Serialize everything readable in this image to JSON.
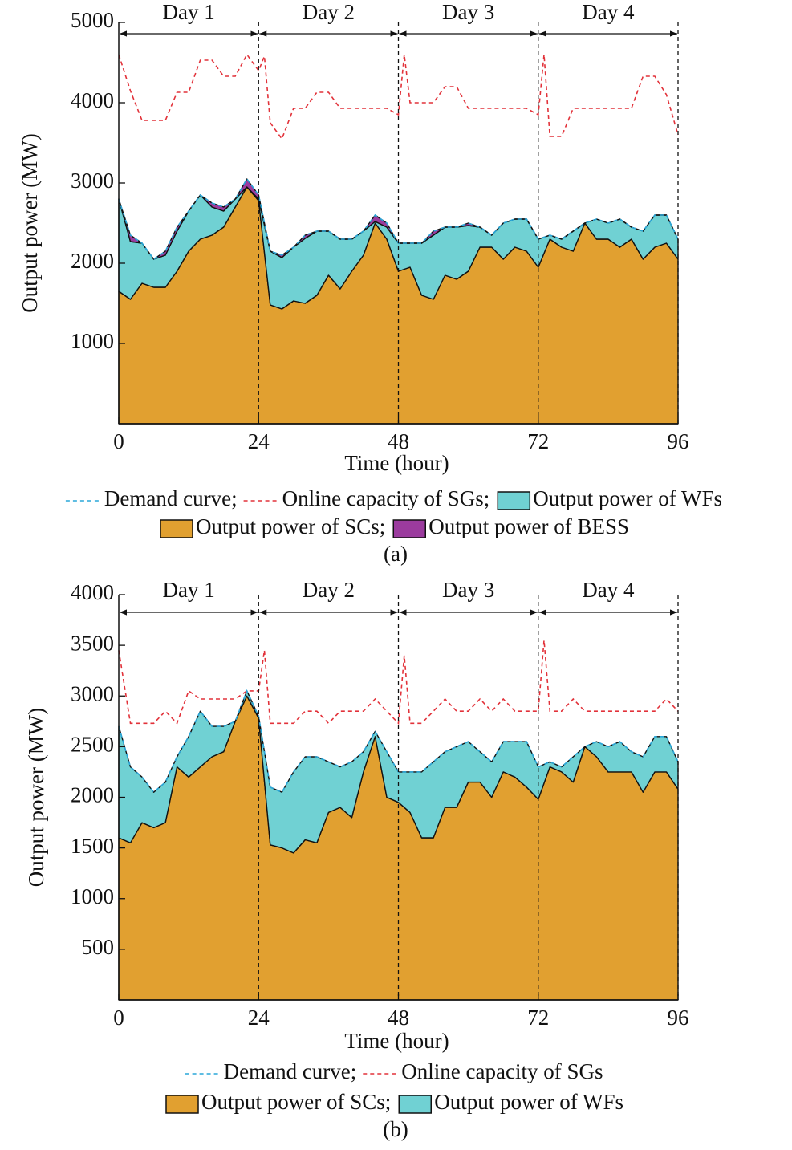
{
  "chart_data": [
    {
      "type": "stacked-area",
      "caption": "(a)",
      "xlabel": "Time (hour)",
      "ylabel": "Output power (MW)",
      "xlim": [
        0,
        96
      ],
      "xticks": [
        0,
        24,
        48,
        72,
        96
      ],
      "ylim": [
        0,
        5000
      ],
      "yticks": [
        1000,
        2000,
        3000,
        4000,
        5000
      ],
      "days": [
        "Day 1",
        "Day 2",
        "Day 3",
        "Day 4"
      ],
      "day_boundaries": [
        0,
        24,
        48,
        72,
        96
      ],
      "legend_rows": [
        [
          0,
          1,
          3
        ],
        [
          2,
          4
        ]
      ],
      "x": [
        0,
        2,
        4,
        6,
        8,
        10,
        12,
        14,
        16,
        18,
        20,
        22,
        24,
        26,
        28,
        30,
        32,
        34,
        36,
        38,
        40,
        42,
        44,
        46,
        48,
        50,
        52,
        54,
        56,
        58,
        60,
        62,
        64,
        66,
        68,
        70,
        72,
        74,
        76,
        78,
        80,
        82,
        84,
        86,
        88,
        90,
        92,
        94,
        96
      ],
      "series": [
        {
          "name": "Demand curve;",
          "kind": "line",
          "dashed": true,
          "color": "#2aa7d9",
          "values": [
            2800,
            2350,
            2250,
            2050,
            2150,
            2450,
            2650,
            2850,
            2750,
            2700,
            2800,
            3050,
            2850,
            2150,
            2100,
            2200,
            2350,
            2400,
            2400,
            2300,
            2300,
            2400,
            2600,
            2500,
            2250,
            2250,
            2250,
            2400,
            2450,
            2450,
            2500,
            2450,
            2350,
            2500,
            2550,
            2550,
            2300,
            2350,
            2300,
            2400,
            2500,
            2550,
            2500,
            2550,
            2450,
            2400,
            2600,
            2600,
            2300
          ]
        },
        {
          "name": "Online capacity of SGs;",
          "kind": "line",
          "dashed": true,
          "color": "#e2323a",
          "x": [
            0,
            2,
            4,
            6,
            8,
            10,
            12,
            14,
            16,
            18,
            20,
            22,
            24,
            25,
            26,
            28,
            30,
            32,
            34,
            36,
            38,
            40,
            42,
            44,
            46,
            48,
            49,
            50,
            52,
            54,
            56,
            58,
            60,
            62,
            64,
            66,
            68,
            70,
            72,
            73,
            74,
            76,
            78,
            80,
            82,
            84,
            86,
            88,
            90,
            92,
            94,
            96
          ],
          "values": [
            4600,
            4150,
            3780,
            3780,
            3780,
            4130,
            4130,
            4530,
            4530,
            4330,
            4330,
            4600,
            4400,
            4580,
            3750,
            3550,
            3930,
            3930,
            4130,
            4130,
            3930,
            3930,
            3930,
            3930,
            3930,
            3850,
            4600,
            4000,
            4000,
            4000,
            4200,
            4200,
            3930,
            3930,
            3930,
            3930,
            3930,
            3930,
            3850,
            4600,
            3580,
            3580,
            3930,
            3930,
            3930,
            3930,
            3930,
            3930,
            4330,
            4330,
            4100,
            3600
          ]
        },
        {
          "name": "Output power of SCs;",
          "kind": "area",
          "color": "#e1a030",
          "values": [
            1650,
            1550,
            1750,
            1700,
            1700,
            1900,
            2150,
            2300,
            2350,
            2450,
            2700,
            2950,
            2780,
            1480,
            1430,
            1530,
            1500,
            1600,
            1850,
            1680,
            1900,
            2100,
            2500,
            2300,
            1900,
            1950,
            1600,
            1550,
            1850,
            1800,
            1900,
            2200,
            2200,
            2050,
            2200,
            2150,
            1950,
            2300,
            2200,
            2150,
            2500,
            2300,
            2300,
            2200,
            2300,
            2050,
            2200,
            2250,
            2050
          ]
        },
        {
          "name": "Output power of WFs",
          "kind": "area",
          "color": "#70d1d3",
          "values": [
            1150,
            720,
            500,
            350,
            400,
            500,
            500,
            550,
            350,
            200,
            100,
            0,
            20,
            670,
            640,
            670,
            810,
            800,
            550,
            620,
            400,
            300,
            20,
            150,
            350,
            300,
            650,
            800,
            600,
            650,
            570,
            250,
            150,
            450,
            350,
            400,
            350,
            50,
            100,
            250,
            0,
            250,
            200,
            350,
            150,
            350,
            400,
            350,
            250
          ]
        },
        {
          "name": "Output power of BESS",
          "kind": "area",
          "color": "#9b3b9e",
          "values": [
            0,
            80,
            0,
            0,
            50,
            50,
            0,
            0,
            50,
            50,
            0,
            100,
            50,
            0,
            30,
            0,
            40,
            0,
            0,
            0,
            0,
            0,
            80,
            50,
            0,
            0,
            0,
            50,
            0,
            0,
            30,
            0,
            0,
            0,
            0,
            0,
            0,
            0,
            0,
            0,
            0,
            0,
            0,
            0,
            0,
            0,
            0,
            0,
            0
          ]
        }
      ]
    },
    {
      "type": "stacked-area",
      "caption": "(b)",
      "xlabel": "Time (hour)",
      "ylabel": "Output power (MW)",
      "xlim": [
        0,
        96
      ],
      "xticks": [
        0,
        24,
        48,
        72,
        96
      ],
      "ylim": [
        0,
        4000
      ],
      "yticks": [
        500,
        1000,
        1500,
        2000,
        2500,
        3000,
        3500,
        4000
      ],
      "days": [
        "Day 1",
        "Day 2",
        "Day 3",
        "Day 4"
      ],
      "day_boundaries": [
        0,
        24,
        48,
        72,
        96
      ],
      "legend_rows": [
        [
          0,
          1
        ],
        [
          2,
          3
        ]
      ],
      "x": [
        0,
        2,
        4,
        6,
        8,
        10,
        12,
        14,
        16,
        18,
        20,
        22,
        24,
        26,
        28,
        30,
        32,
        34,
        36,
        38,
        40,
        42,
        44,
        46,
        48,
        50,
        52,
        54,
        56,
        58,
        60,
        62,
        64,
        66,
        68,
        70,
        72,
        74,
        76,
        78,
        80,
        82,
        84,
        86,
        88,
        90,
        92,
        94,
        96
      ],
      "series": [
        {
          "name": "Demand curve;",
          "kind": "line",
          "dashed": true,
          "color": "#2aa7d9",
          "values": [
            2700,
            2300,
            2200,
            2050,
            2150,
            2400,
            2600,
            2850,
            2700,
            2700,
            2750,
            3050,
            2800,
            2100,
            2050,
            2250,
            2400,
            2400,
            2350,
            2300,
            2350,
            2450,
            2650,
            2450,
            2250,
            2250,
            2250,
            2350,
            2450,
            2500,
            2550,
            2450,
            2350,
            2550,
            2550,
            2550,
            2300,
            2350,
            2300,
            2400,
            2500,
            2550,
            2500,
            2550,
            2450,
            2400,
            2600,
            2600,
            2350
          ]
        },
        {
          "name": "Online capacity of SGs",
          "kind": "line",
          "dashed": true,
          "color": "#e2323a",
          "x": [
            0,
            2,
            4,
            6,
            8,
            10,
            12,
            14,
            16,
            18,
            20,
            22,
            24,
            25,
            26,
            28,
            30,
            32,
            34,
            36,
            38,
            40,
            42,
            44,
            46,
            48,
            49,
            50,
            52,
            54,
            56,
            58,
            60,
            62,
            64,
            66,
            68,
            70,
            72,
            73,
            74,
            76,
            78,
            80,
            82,
            84,
            86,
            88,
            90,
            92,
            94,
            96
          ],
          "values": [
            3450,
            2730,
            2730,
            2730,
            2850,
            2730,
            3050,
            2970,
            2970,
            2970,
            2970,
            3050,
            3050,
            3450,
            2730,
            2730,
            2730,
            2850,
            2850,
            2730,
            2850,
            2850,
            2850,
            2970,
            2850,
            2730,
            3400,
            2730,
            2730,
            2850,
            2970,
            2850,
            2850,
            2970,
            2850,
            2970,
            2850,
            2850,
            2850,
            3550,
            2850,
            2850,
            2970,
            2850,
            2850,
            2850,
            2850,
            2850,
            2850,
            2850,
            2970,
            2850
          ]
        },
        {
          "name": "Output power of SCs;",
          "kind": "area",
          "color": "#e1a030",
          "values": [
            1600,
            1550,
            1750,
            1700,
            1750,
            2300,
            2200,
            2300,
            2400,
            2450,
            2750,
            3000,
            2780,
            1530,
            1500,
            1450,
            1580,
            1550,
            1850,
            1900,
            1800,
            2250,
            2600,
            2000,
            1950,
            1850,
            1600,
            1600,
            1900,
            1900,
            2150,
            2150,
            2000,
            2250,
            2200,
            2100,
            1980,
            2300,
            2250,
            2150,
            2500,
            2400,
            2250,
            2250,
            2250,
            2050,
            2250,
            2250,
            2080
          ]
        },
        {
          "name": "Output power of WFs",
          "kind": "area",
          "color": "#70d1d3",
          "values": [
            1100,
            750,
            450,
            350,
            400,
            100,
            400,
            550,
            300,
            250,
            0,
            50,
            20,
            570,
            550,
            800,
            820,
            850,
            500,
            400,
            550,
            200,
            50,
            450,
            300,
            400,
            650,
            750,
            550,
            600,
            400,
            300,
            350,
            300,
            350,
            450,
            320,
            50,
            50,
            250,
            0,
            150,
            250,
            300,
            200,
            350,
            350,
            350,
            270
          ]
        }
      ]
    }
  ]
}
